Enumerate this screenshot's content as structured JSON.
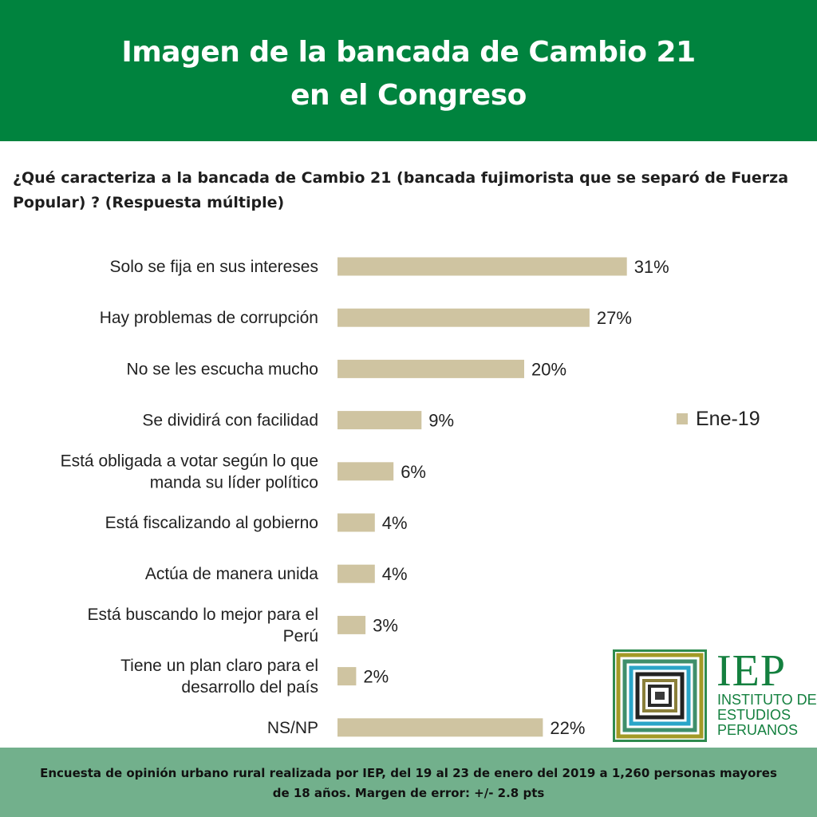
{
  "header": {
    "title_line1": "Imagen de la bancada de Cambio 21",
    "title_line2": "en el Congreso",
    "bg_color": "#00833e"
  },
  "question": "¿Qué caracteriza a la bancada de Cambio 21 (bancada fujimorista que se separó de Fuerza Popular) ? (Respuesta múltiple)",
  "chart_data": {
    "type": "bar",
    "orientation": "horizontal",
    "title": "Imagen de la bancada de Cambio 21 en el Congreso",
    "categories": [
      "Solo se fija en sus intereses",
      "Hay problemas de corrupción",
      "No se les escucha mucho",
      "Se dividirá con facilidad",
      "Está obligada a votar según lo que manda su líder político",
      "Está fiscalizando al gobierno",
      "Actúa de manera unida",
      "Está buscando lo mejor para el Perú",
      "Tiene un plan claro para el desarrollo del país",
      "NS/NP"
    ],
    "category_lines": [
      [
        "Solo se fija en sus intereses"
      ],
      [
        "Hay problemas de corrupción"
      ],
      [
        "No se les escucha mucho"
      ],
      [
        "Se dividirá con facilidad"
      ],
      [
        "Está obligada a votar según lo que",
        "manda su líder político"
      ],
      [
        "Está fiscalizando al gobierno"
      ],
      [
        "Actúa de manera unida"
      ],
      [
        "Está buscando lo mejor para el",
        "Perú"
      ],
      [
        "Tiene un plan claro para el",
        "desarrollo del país"
      ],
      [
        "NS/NP"
      ]
    ],
    "series": [
      {
        "name": "Ene-19",
        "values": [
          31,
          27,
          20,
          9,
          6,
          4,
          4,
          3,
          2,
          22
        ],
        "labels": [
          "31%",
          "27%",
          "20%",
          "9%",
          "6%",
          "4%",
          "4%",
          "3%",
          "2%",
          "22%"
        ],
        "color": "#cfc4a1"
      }
    ],
    "xlim": [
      0,
      100
    ],
    "grid": false,
    "legend_position": "right"
  },
  "legend": {
    "label": "Ene-19"
  },
  "logo": {
    "name": "IEP",
    "line1": "INSTITUTO DE",
    "line2": "ESTUDIOS",
    "line3": "PERUANOS",
    "color": "#14803f"
  },
  "footer": {
    "text": "Encuesta de opinión urbano rural realizada por IEP, del 19 al 23 de enero del 2019 a 1,260 personas mayores de 18 años. Margen de error: +/- 2.8 pts",
    "bg_color": "#72b08c"
  }
}
